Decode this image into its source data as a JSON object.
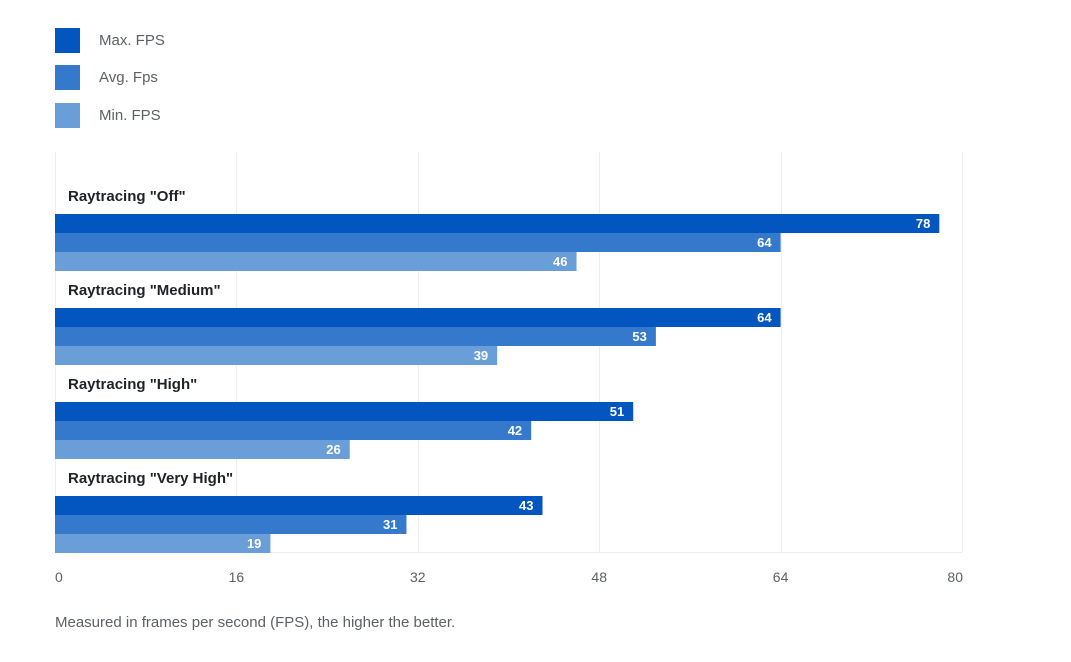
{
  "legend": {
    "max_label": "Max. FPS",
    "avg_label": "Avg. Fps",
    "min_label": "Min. FPS"
  },
  "caption": "Measured in frames per second (FPS), the higher the better.",
  "colors": {
    "max": "#0356bf",
    "avg": "#3579cc",
    "min": "#6a9ed9",
    "grid": "#eeeeee",
    "axis_text": "#5d6066",
    "category_text": "#1f2228",
    "data_label": "#ffffff"
  },
  "chart_data": {
    "type": "bar",
    "orientation": "horizontal",
    "categories": [
      "Raytracing \"Off\"",
      "Raytracing \"Medium\"",
      "Raytracing \"High\"",
      "Raytracing \"Very High\""
    ],
    "series": [
      {
        "name": "Max. FPS",
        "values": [
          78,
          64,
          51,
          43
        ]
      },
      {
        "name": "Avg. Fps",
        "values": [
          64,
          53,
          42,
          31
        ]
      },
      {
        "name": "Min. FPS",
        "values": [
          46,
          39,
          26,
          19
        ]
      }
    ],
    "xlim": [
      0,
      80
    ],
    "xticks": [
      0,
      16,
      32,
      48,
      64,
      80
    ],
    "xlabel": "",
    "ylabel": "",
    "title": "",
    "grid": true,
    "legend_position": "top-left",
    "data_labels": true
  }
}
